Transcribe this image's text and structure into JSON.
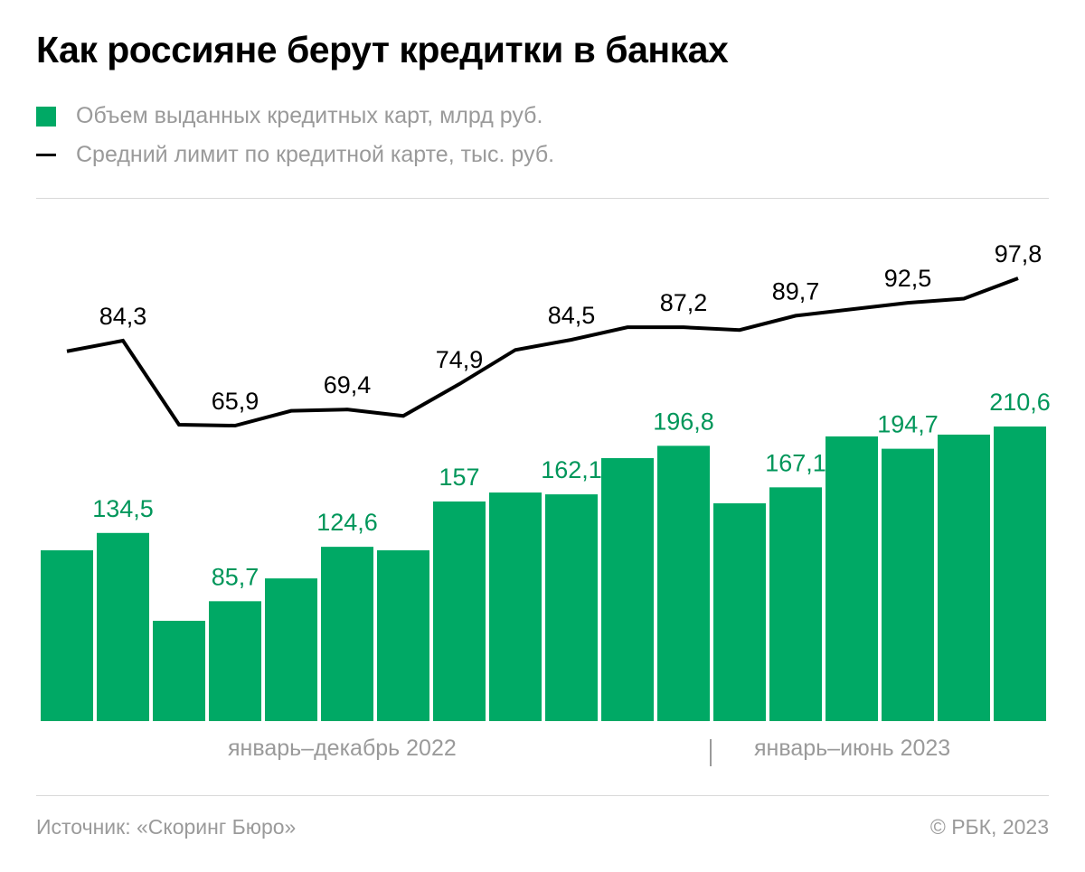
{
  "title": "Как россияне берут кредитки в банках",
  "legend": [
    {
      "label": "Объем выданных кредитных карт, млрд руб.",
      "type": "bar",
      "color": "#00a965"
    },
    {
      "label": "Средний лимит по кредитной карте, тыс. руб.",
      "type": "line",
      "color": "#000000"
    }
  ],
  "chart_data": {
    "type": "bar+line",
    "title": "Как россияне берут кредитки в банках",
    "x_groups": [
      "январь–декабрь 2022",
      "январь–июнь 2023"
    ],
    "categories_count_per_group": [
      12,
      6
    ],
    "series": [
      {
        "name": "Объем выданных кредитных карт, млрд руб.",
        "type": "bar",
        "color": "#00a965",
        "values": [
          122.1,
          134.5,
          71.7,
          85.7,
          102.0,
          124.6,
          122.1,
          157,
          163.4,
          162.1,
          188.0,
          196.8,
          155.7,
          167.1,
          203.5,
          194.7,
          204.8,
          210.6
        ],
        "labels": [
          "",
          "134,5",
          "",
          "85,7",
          "",
          "124,6",
          "",
          "157",
          "",
          "162,1",
          "",
          "196,8",
          "",
          "167,1",
          "",
          "194,7",
          "",
          "210,6"
        ]
      },
      {
        "name": "Средний лимит по кредитной карте, тыс. руб.",
        "type": "line",
        "color": "#000000",
        "values": [
          82.0,
          84.3,
          66.1,
          65.9,
          69.1,
          69.4,
          68.0,
          74.9,
          82.3,
          84.5,
          87.2,
          87.2,
          86.6,
          89.7,
          91.1,
          92.5,
          93.4,
          97.8
        ],
        "labels": [
          "",
          "84,3",
          "",
          "65,9",
          "",
          "69,4",
          "",
          "74,9",
          "",
          "84,5",
          "",
          "87,2",
          "",
          "89,7",
          "",
          "92,5",
          "",
          "97,8"
        ]
      }
    ],
    "grid": false,
    "legend_position": "top-left"
  },
  "footer": {
    "source": "Источник: «Скоринг Бюро»",
    "copyright": "© РБК, 2023"
  }
}
